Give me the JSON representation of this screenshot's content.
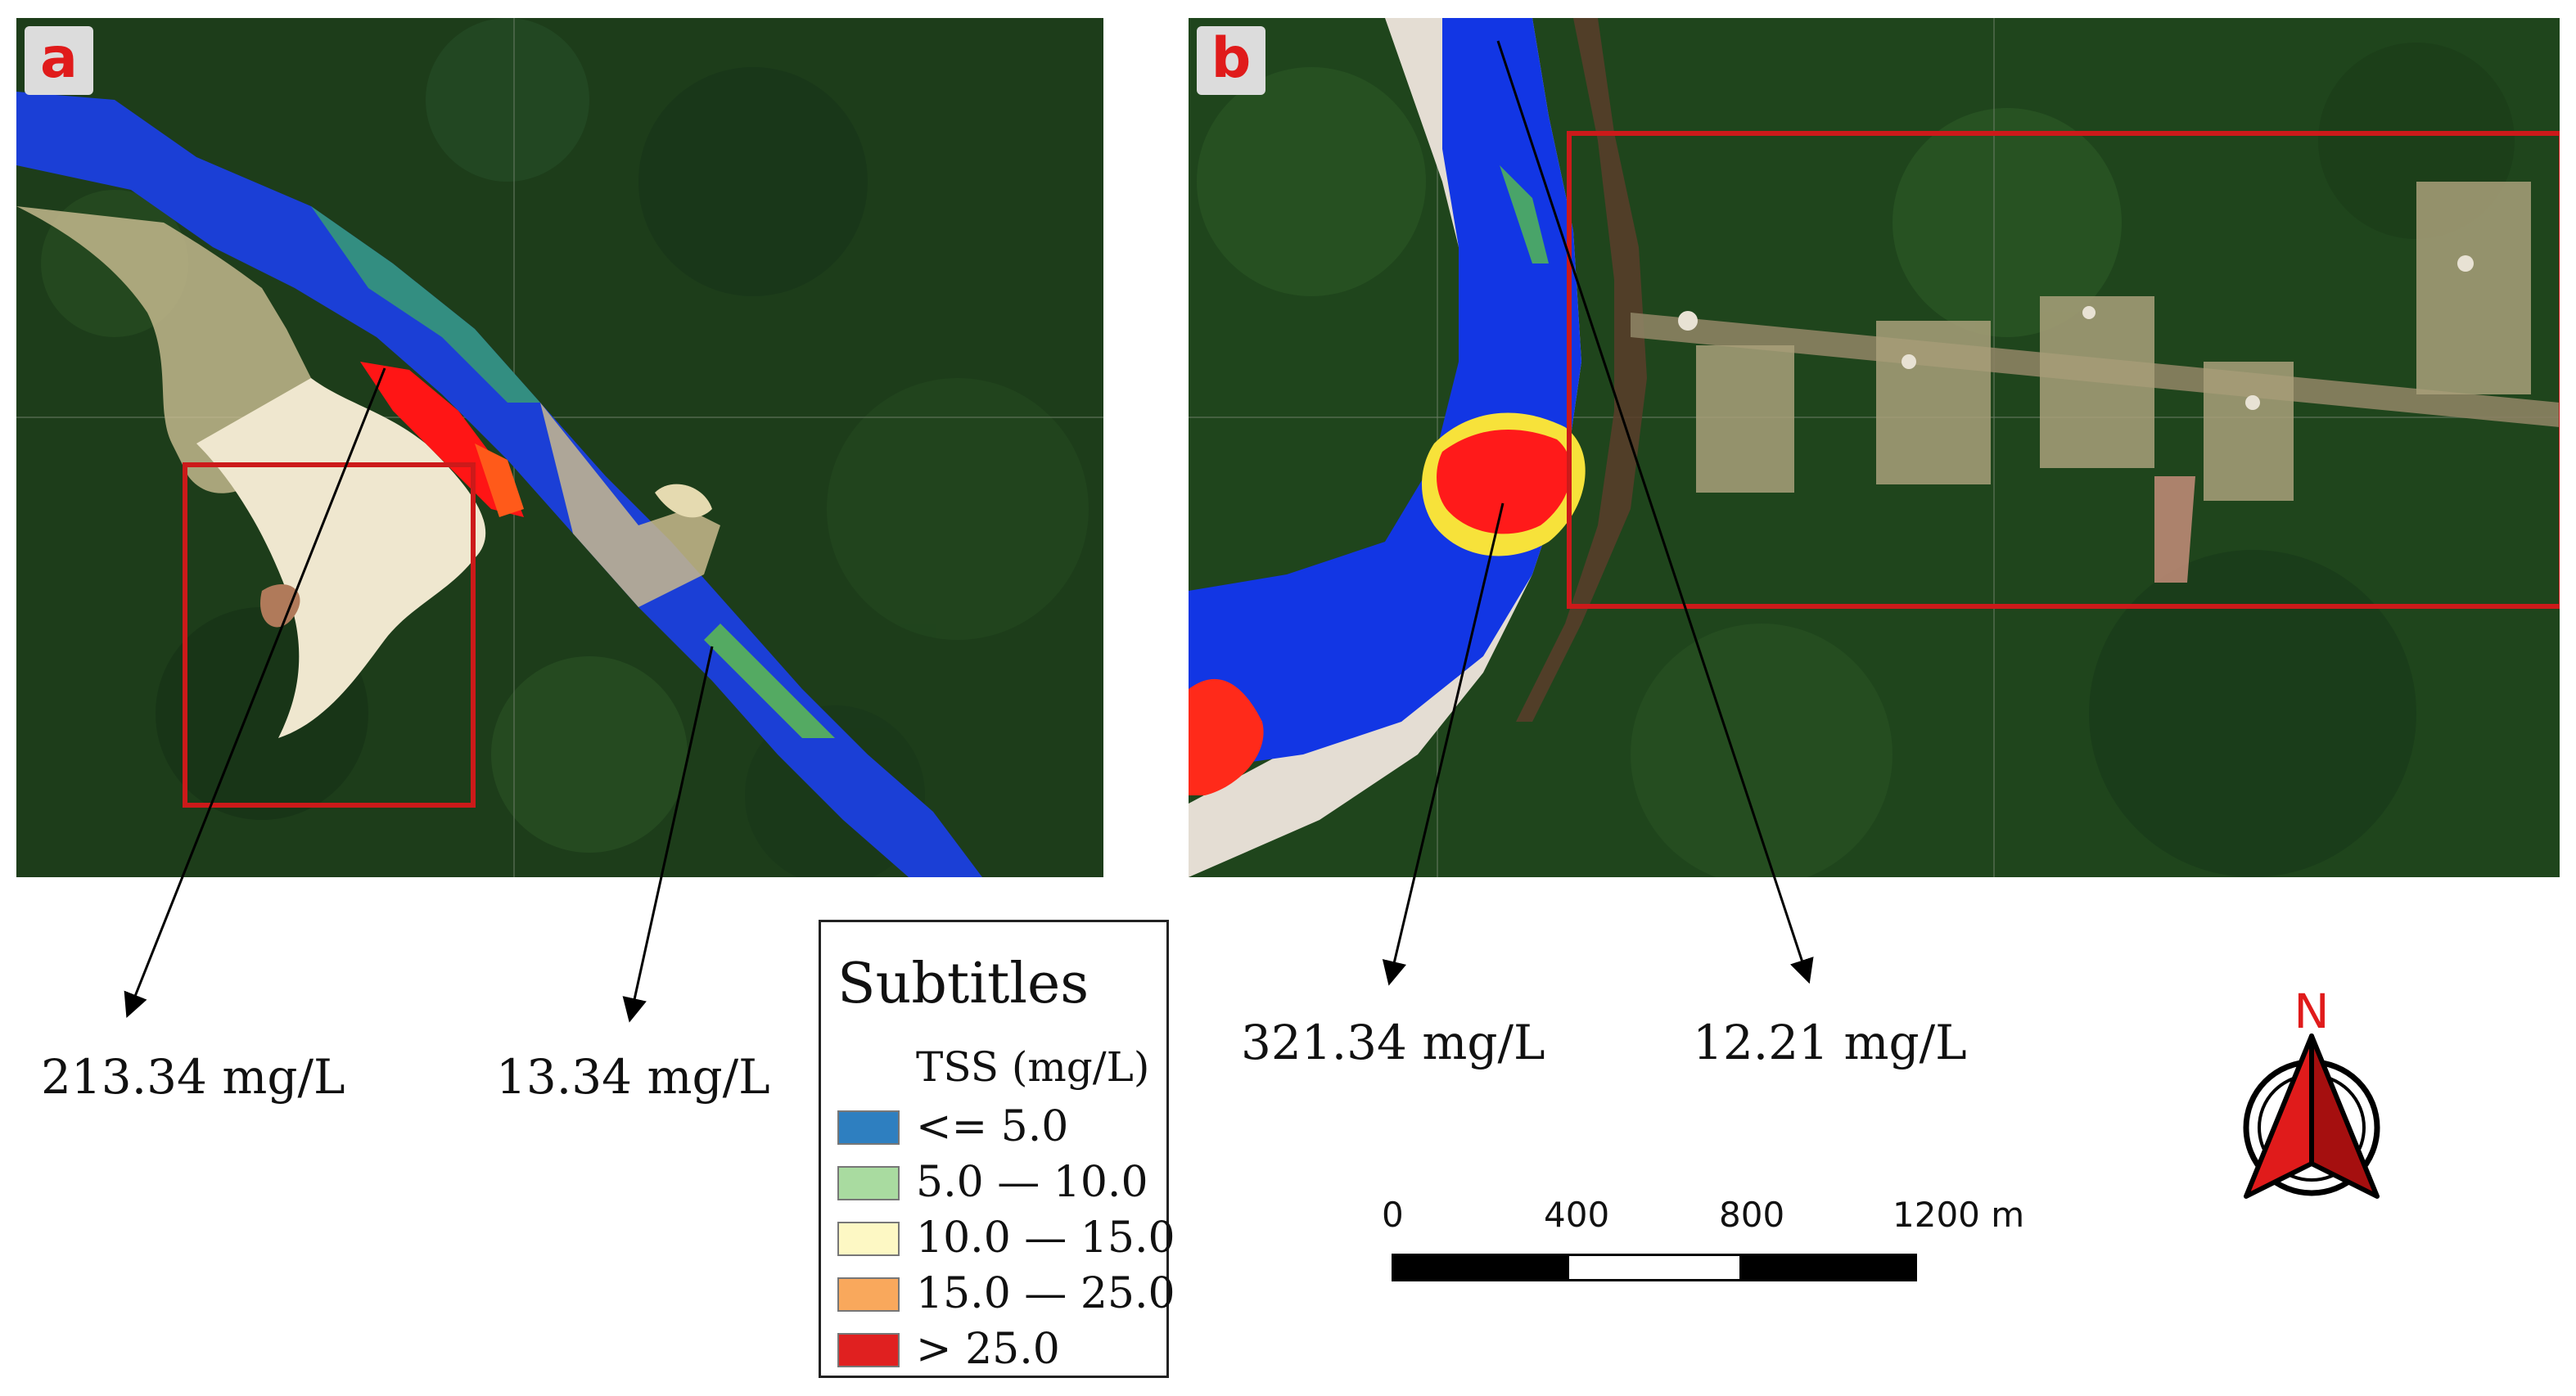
{
  "panels": [
    {
      "label": "a"
    },
    {
      "label": "b"
    }
  ],
  "value_labels": {
    "a_left": "213.34 mg/L",
    "a_right": "13.34 mg/L",
    "b_left": "321.34 mg/L",
    "b_right": "12.21 mg/L"
  },
  "legend": {
    "title": "Subtitles",
    "subtitle": "TSS (mg/L)",
    "items": [
      {
        "label": "<= 5.0",
        "color": "#2e7fc0"
      },
      {
        "label": "5.0 — 10.0",
        "color": "#a9dba0"
      },
      {
        "label": "10.0 — 15.0",
        "color": "#fdf8c4"
      },
      {
        "label": "15.0 — 25.0",
        "color": "#f9a85c"
      },
      {
        "label": "> 25.0",
        "color": "#e02020"
      }
    ]
  },
  "scale_bar": {
    "ticks": [
      "0",
      "400",
      "800",
      "1200 m"
    ]
  },
  "north_arrow": {
    "label": "N",
    "color": "#e01b1b"
  },
  "colors": {
    "forest": "#1c3f1a",
    "river_low": "#1537d8",
    "river_high": "#ff1a1a",
    "sediment": "#e9e1c2",
    "study_box": "#cc1a1a"
  }
}
